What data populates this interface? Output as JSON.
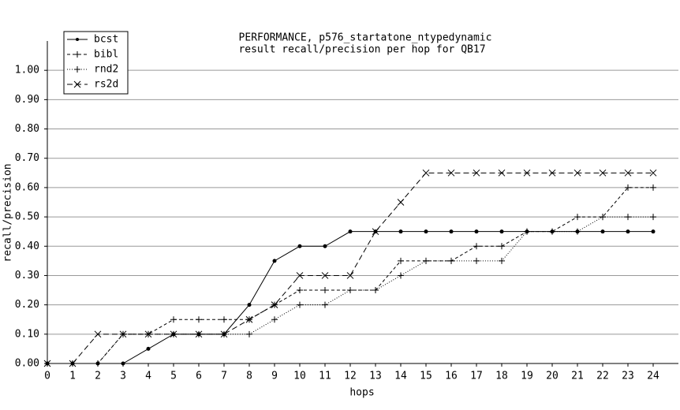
{
  "chart_data": {
    "type": "line",
    "title": "PERFORMANCE, p576_startatone_ntypedynamic",
    "subtitle": "result recall/precision per hop for QB17",
    "x_label": "hops",
    "y_label": "recall/precision",
    "x": [
      0,
      1,
      2,
      3,
      4,
      5,
      6,
      7,
      8,
      9,
      10,
      11,
      12,
      13,
      14,
      15,
      16,
      17,
      18,
      19,
      20,
      21,
      22,
      23,
      24
    ],
    "series": [
      {
        "name": "bcst",
        "color": "#000000",
        "dash": "solid",
        "marker": "dot",
        "values": [
          0,
          0,
          0,
          0,
          0.05,
          0.1,
          0.1,
          0.1,
          0.2,
          0.35,
          0.4,
          0.4,
          0.45,
          0.45,
          0.45,
          0.45,
          0.45,
          0.45,
          0.45,
          0.45,
          0.45,
          0.45,
          0.45,
          0.45,
          0.45
        ]
      },
      {
        "name": "bibl",
        "color": "#000000",
        "dash": "dashed",
        "marker": "plus",
        "values": [
          0,
          0,
          0,
          0.1,
          0.1,
          0.15,
          0.15,
          0.15,
          0.15,
          0.2,
          0.25,
          0.25,
          0.25,
          0.25,
          0.35,
          0.35,
          0.35,
          0.4,
          0.4,
          0.45,
          0.45,
          0.5,
          0.5,
          0.6,
          0.6
        ]
      },
      {
        "name": "rnd2",
        "color": "#000000",
        "dash": "dotted",
        "marker": "plus",
        "values": [
          0,
          0,
          0,
          0.1,
          0.1,
          0.1,
          0.1,
          0.1,
          0.1,
          0.15,
          0.2,
          0.2,
          0.25,
          0.25,
          0.3,
          0.35,
          0.35,
          0.35,
          0.35,
          0.45,
          0.45,
          0.45,
          0.5,
          0.5,
          0.5
        ]
      },
      {
        "name": "rs2d",
        "color": "#000000",
        "dash": "longdash",
        "marker": "cross",
        "values": [
          0,
          0,
          0.1,
          0.1,
          0.1,
          0.1,
          0.1,
          0.1,
          0.15,
          0.2,
          0.3,
          0.3,
          0.3,
          0.45,
          0.55,
          0.65,
          0.65,
          0.65,
          0.65,
          0.65,
          0.65,
          0.65,
          0.65,
          0.65,
          0.65
        ]
      }
    ],
    "xlim": [
      0,
      25
    ],
    "xticks": [
      0,
      1,
      2,
      3,
      4,
      5,
      6,
      7,
      8,
      9,
      10,
      11,
      12,
      13,
      14,
      15,
      16,
      17,
      18,
      19,
      20,
      21,
      22,
      23,
      24
    ],
    "ylim": [
      0,
      1.1
    ],
    "yticks": [
      {
        "value": 0,
        "label": "0.00"
      },
      {
        "value": 0.1,
        "label": "0.10"
      },
      {
        "value": 0.2,
        "label": "0.20"
      },
      {
        "value": 0.3,
        "label": "0.30"
      },
      {
        "value": 0.4,
        "label": "0.40"
      },
      {
        "value": 0.5,
        "label": "0.50"
      },
      {
        "value": 0.6,
        "label": "0.60"
      },
      {
        "value": 0.7,
        "label": "0.70"
      },
      {
        "value": 0.8,
        "label": "0.80"
      },
      {
        "value": 0.9,
        "label": "0.90"
      },
      {
        "value": 1,
        "label": "1.00"
      }
    ],
    "grid": true,
    "legend": "upper left"
  }
}
